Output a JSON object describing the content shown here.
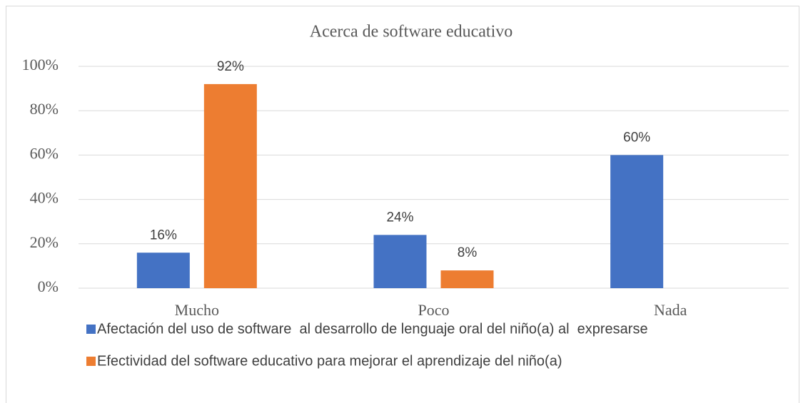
{
  "chart_data": {
    "type": "bar",
    "title": "Acerca de software educativo",
    "categories": [
      "Mucho",
      "Poco",
      "Nada"
    ],
    "series": [
      {
        "name": "Afectación del uso de software  al desarrollo de lenguaje oral del niño(a) al  expresarse",
        "color": "#4472c4",
        "values": [
          16,
          24,
          60
        ],
        "value_labels": [
          "16%",
          "24%",
          "60%"
        ]
      },
      {
        "name": "Efectividad del software educativo para mejorar el aprendizaje del niño(a)",
        "color": "#ed7d31",
        "values": [
          92,
          8,
          null
        ],
        "value_labels": [
          "92%",
          "8%",
          null
        ]
      }
    ],
    "ylim": [
      0,
      100
    ],
    "yticks": [
      {
        "value": 0,
        "label": "0%"
      },
      {
        "value": 20,
        "label": "20%"
      },
      {
        "value": 40,
        "label": "40%"
      },
      {
        "value": 60,
        "label": "60%"
      },
      {
        "value": 80,
        "label": "80%"
      },
      {
        "value": 100,
        "label": "100%"
      }
    ],
    "grid": true,
    "legend": "bottom"
  }
}
